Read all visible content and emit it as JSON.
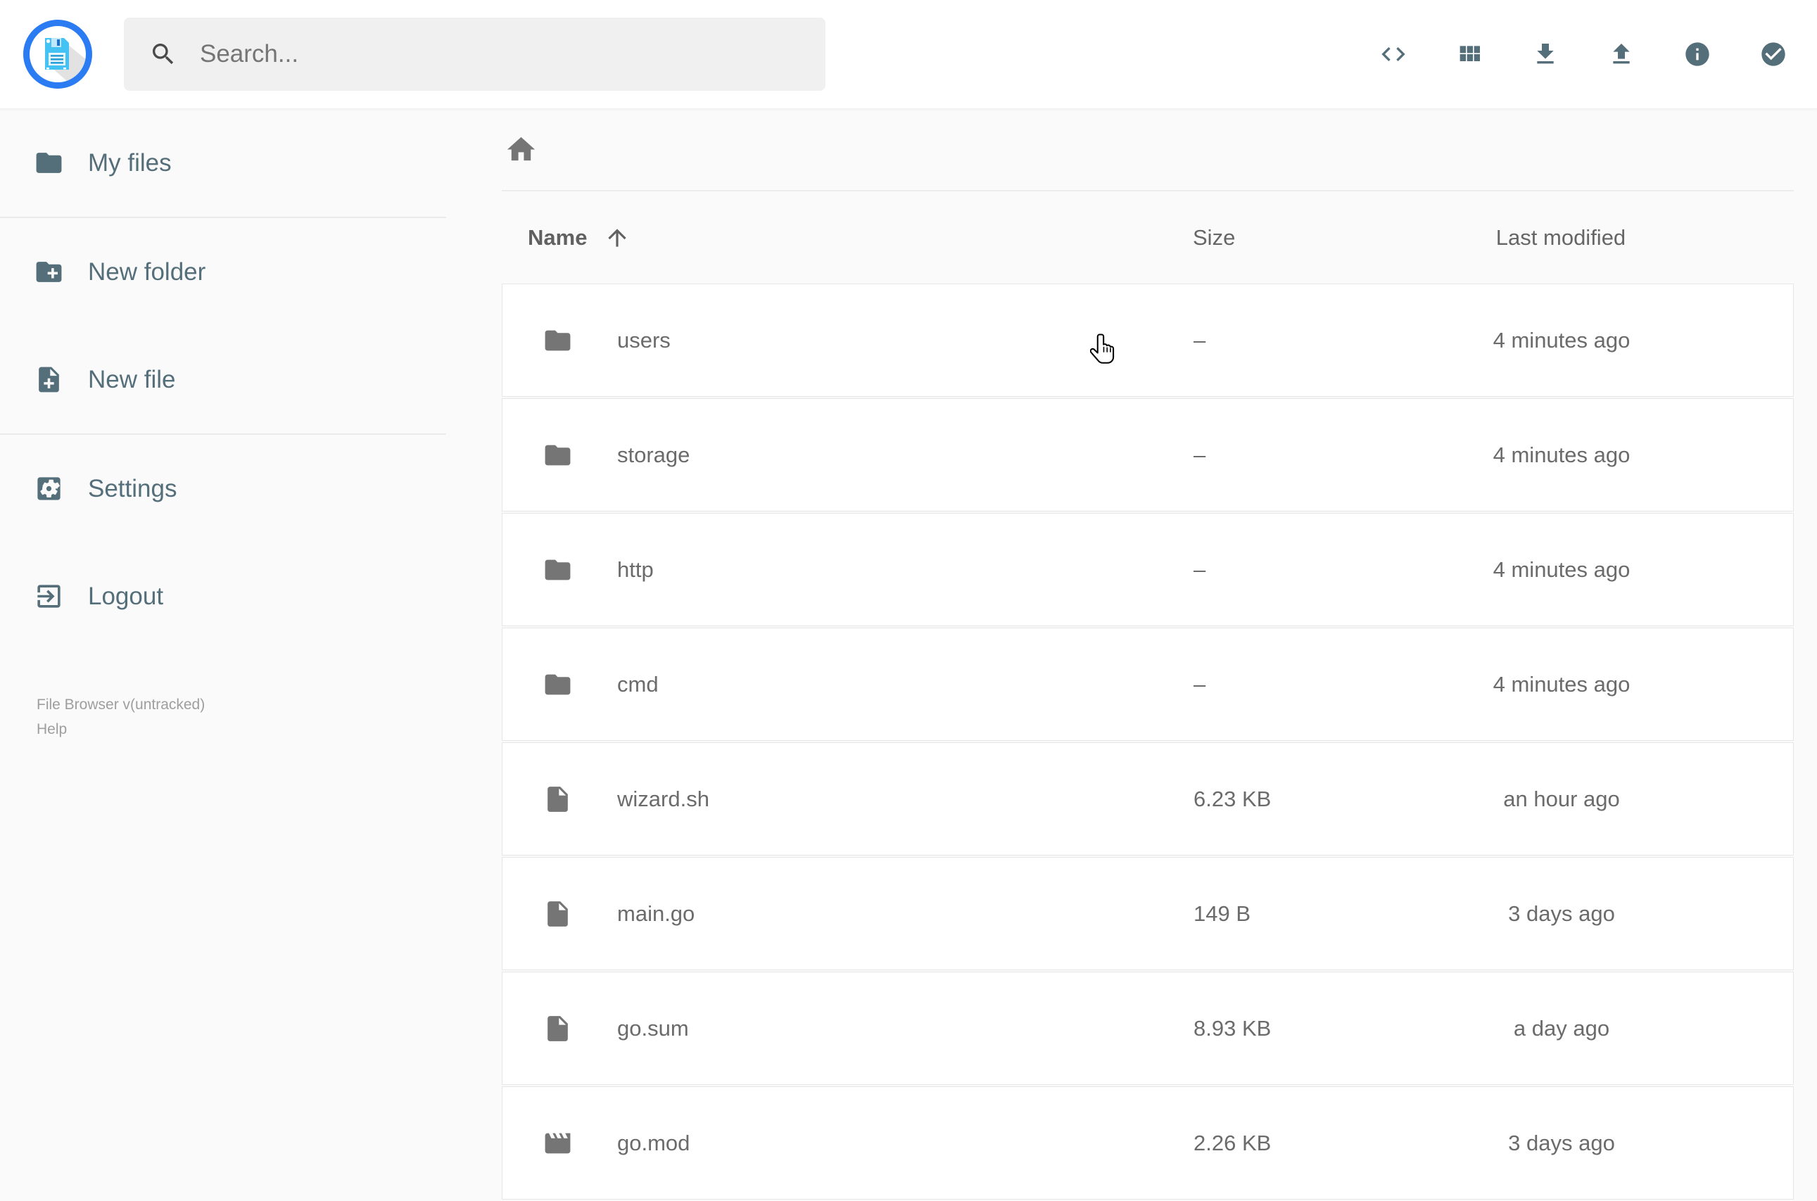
{
  "app": {
    "name": "File Browser",
    "colors": {
      "accent_blue": "#2b7bf3",
      "slate": "#546e7a",
      "icon_gray": "#757575",
      "text_gray": "#6b6b6b",
      "background": "#fafafa"
    }
  },
  "header": {
    "logo": {
      "icon": "floppy-logo-icon"
    },
    "search": {
      "placeholder": "Search...",
      "icon": "search-icon"
    },
    "actions": [
      {
        "id": "shell",
        "icon": "code-icon"
      },
      {
        "id": "view-mode",
        "icon": "grid-view-icon"
      },
      {
        "id": "download",
        "icon": "download-icon"
      },
      {
        "id": "upload",
        "icon": "upload-icon"
      },
      {
        "id": "info",
        "icon": "info-icon"
      },
      {
        "id": "select-multiple",
        "icon": "check-circle-icon"
      }
    ]
  },
  "sidebar": {
    "items": [
      {
        "label": "My files",
        "icon": "folder-icon",
        "divider_after": true
      },
      {
        "label": "New folder",
        "icon": "new-folder-icon",
        "divider_after": false
      },
      {
        "label": "New file",
        "icon": "new-file-icon",
        "divider_after": true
      },
      {
        "label": "Settings",
        "icon": "settings-icon",
        "divider_after": false
      },
      {
        "label": "Logout",
        "icon": "logout-icon",
        "divider_after": false
      }
    ],
    "credits": {
      "version": "File Browser v(untracked)",
      "help": "Help"
    }
  },
  "breadcrumb": {
    "home": {
      "icon": "home-icon"
    }
  },
  "listing": {
    "headers": {
      "name": "Name",
      "size": "Size",
      "modified": "Last modified"
    },
    "sort": {
      "by": "name",
      "ascending": true,
      "icon": "arrow-up-icon"
    },
    "rows": [
      {
        "icon": "folder-icon",
        "name": "users",
        "size": "–",
        "modified": "4 minutes ago"
      },
      {
        "icon": "folder-icon",
        "name": "storage",
        "size": "–",
        "modified": "4 minutes ago"
      },
      {
        "icon": "folder-icon",
        "name": "http",
        "size": "–",
        "modified": "4 minutes ago"
      },
      {
        "icon": "folder-icon",
        "name": "cmd",
        "size": "–",
        "modified": "4 minutes ago"
      },
      {
        "icon": "file-icon",
        "name": "wizard.sh",
        "size": "6.23 KB",
        "modified": "an hour ago"
      },
      {
        "icon": "file-icon",
        "name": "main.go",
        "size": "149 B",
        "modified": "3 days ago"
      },
      {
        "icon": "file-icon",
        "name": "go.sum",
        "size": "8.93 KB",
        "modified": "a day ago"
      },
      {
        "icon": "movie-icon",
        "name": "go.mod",
        "size": "2.26 KB",
        "modified": "3 days ago"
      }
    ]
  },
  "cursor": {
    "icon": "hand-pointer-cursor"
  }
}
